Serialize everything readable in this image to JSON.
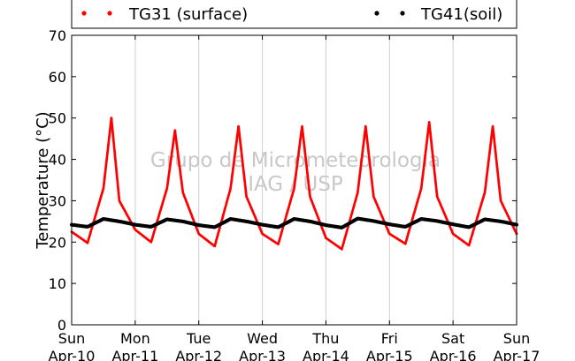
{
  "chart_data": {
    "type": "scatter",
    "ylabel": "Temperature (°C)",
    "ylim": [
      0,
      70
    ],
    "yticks": [
      0,
      10,
      20,
      30,
      40,
      50,
      60,
      70
    ],
    "xlim": [
      "2016-04-10 00:00",
      "2016-04-17 00:00"
    ],
    "xticks": [
      {
        "day": "Sun",
        "date": "Apr-10"
      },
      {
        "day": "Mon",
        "date": "Apr-11"
      },
      {
        "day": "Tue",
        "date": "Apr-12"
      },
      {
        "day": "Wed",
        "date": "Apr-13"
      },
      {
        "day": "Thu",
        "date": "Apr-14"
      },
      {
        "day": "Fri",
        "date": "Apr-15"
      },
      {
        "day": "Sat",
        "date": "Apr-16"
      },
      {
        "day": "Sun",
        "date": "Apr-17"
      }
    ],
    "grid": "vertical",
    "legend_placement": "top",
    "watermark": [
      "Grupo de Micrometeorologia",
      "IAG / USP"
    ],
    "series": [
      {
        "name": "TG31 (surface)",
        "color": "#ff0000",
        "marker": "dot",
        "x": [
          "2016-04-10 00:00",
          "2016-04-10 06:00",
          "2016-04-10 12:00",
          "2016-04-10 15:00",
          "2016-04-10 18:00",
          "2016-04-11 00:00",
          "2016-04-11 06:00",
          "2016-04-11 12:00",
          "2016-04-11 15:00",
          "2016-04-11 18:00",
          "2016-04-12 00:00",
          "2016-04-12 06:00",
          "2016-04-12 12:00",
          "2016-04-12 15:00",
          "2016-04-12 18:00",
          "2016-04-13 00:00",
          "2016-04-13 06:00",
          "2016-04-13 12:00",
          "2016-04-13 15:00",
          "2016-04-13 18:00",
          "2016-04-14 00:00",
          "2016-04-14 06:00",
          "2016-04-14 12:00",
          "2016-04-14 15:00",
          "2016-04-14 18:00",
          "2016-04-15 00:00",
          "2016-04-15 06:00",
          "2016-04-15 12:00",
          "2016-04-15 15:00",
          "2016-04-15 18:00",
          "2016-04-16 00:00",
          "2016-04-16 06:00",
          "2016-04-16 12:00",
          "2016-04-16 15:00",
          "2016-04-16 18:00",
          "2016-04-17 00:00"
        ],
        "y": [
          22.5,
          19.8,
          33,
          50,
          30,
          23,
          20,
          33,
          47,
          32,
          22,
          19,
          33,
          48,
          31,
          22,
          19.5,
          33,
          48,
          31,
          21,
          18.3,
          32,
          48,
          31,
          22,
          19.6,
          33,
          49,
          31,
          22,
          19.2,
          32,
          48,
          30,
          22
        ]
      },
      {
        "name": "TG41(soil)",
        "color": "#000000",
        "marker": "dot",
        "x": [
          "2016-04-10 00:00",
          "2016-04-10 06:00",
          "2016-04-10 12:00",
          "2016-04-10 18:00",
          "2016-04-11 00:00",
          "2016-04-11 06:00",
          "2016-04-11 12:00",
          "2016-04-11 18:00",
          "2016-04-12 00:00",
          "2016-04-12 06:00",
          "2016-04-12 12:00",
          "2016-04-12 18:00",
          "2016-04-13 00:00",
          "2016-04-13 06:00",
          "2016-04-13 12:00",
          "2016-04-13 18:00",
          "2016-04-14 00:00",
          "2016-04-14 06:00",
          "2016-04-14 12:00",
          "2016-04-14 18:00",
          "2016-04-15 00:00",
          "2016-04-15 06:00",
          "2016-04-15 12:00",
          "2016-04-15 18:00",
          "2016-04-16 00:00",
          "2016-04-16 06:00",
          "2016-04-16 12:00",
          "2016-04-16 18:00",
          "2016-04-17 00:00"
        ],
        "y": [
          24.2,
          23.7,
          25.6,
          25.0,
          24.2,
          23.7,
          25.5,
          25.0,
          24.1,
          23.6,
          25.6,
          25.0,
          24.2,
          23.6,
          25.6,
          25.0,
          24.1,
          23.5,
          25.7,
          25.1,
          24.3,
          23.7,
          25.6,
          25.1,
          24.3,
          23.6,
          25.5,
          25.0,
          24.2
        ]
      }
    ]
  }
}
